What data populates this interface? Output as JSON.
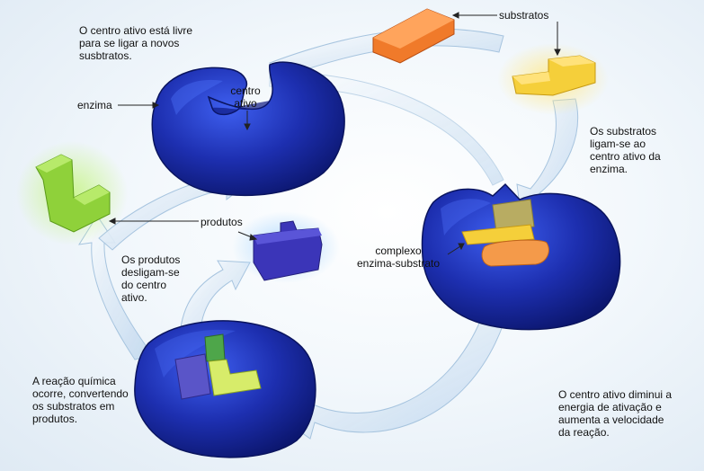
{
  "labels": {
    "active_site_free": "O centro ativo está livre\npara se ligar a novos\nsusbtratos.",
    "enzyme": "enzima",
    "active_site": "centro\nativo",
    "substrates": "substratos",
    "substrates_bind": "Os substratos\nligam-se ao\ncentro ativo da\nenzima.",
    "products": "produtos",
    "products_release": "Os produtos\ndesligam-se\ndo centro\nativo.",
    "complex": "complexo\nenzima-substrato",
    "reaction": "A reação química\nocorre, convertendo\nos substratos em\nprodutos.",
    "activation": "O centro ativo diminui a\nenergia de ativação e\naumenta a velocidade\nda reação."
  },
  "colors": {
    "enzyme": "#1d2fb0",
    "enzyme_dark": "#0d1a78",
    "enzyme_light": "#3350e0",
    "substrate_orange": "#f07a2a",
    "substrate_yellow": "#f5cf3a",
    "product_green": "#8fd13a",
    "product_purple": "#3b35b8",
    "arrow": "#cfe2f3"
  }
}
